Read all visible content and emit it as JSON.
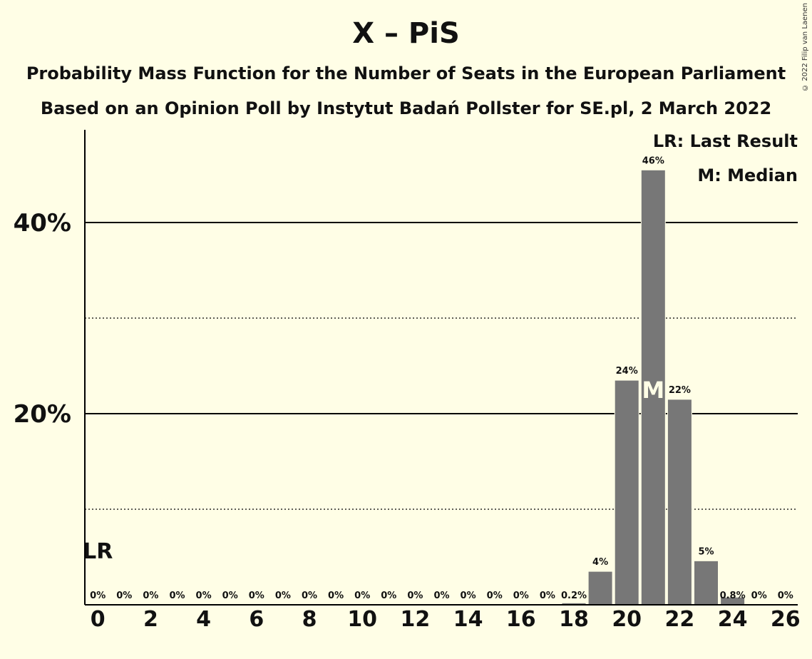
{
  "header": {
    "title": "X – PiS",
    "subtitle_line1": "Probability Mass Function for the Number of Seats in the European Parliament",
    "subtitle_line2": "Based on an Opinion Poll by Instytut Badań Pollster for SE.pl, 2 March 2022"
  },
  "copyright": "© 2022 Filip van Laenen",
  "legend": {
    "last_result": "LR: Last Result",
    "median": "M: Median"
  },
  "chart_data": {
    "type": "bar",
    "x": [
      0,
      1,
      2,
      3,
      4,
      5,
      6,
      7,
      8,
      9,
      10,
      11,
      12,
      13,
      14,
      15,
      16,
      17,
      18,
      19,
      20,
      21,
      22,
      23,
      24,
      25,
      26
    ],
    "values": [
      0,
      0,
      0,
      0,
      0,
      0,
      0,
      0,
      0,
      0,
      0,
      0,
      0,
      0,
      0,
      0,
      0,
      0,
      0.2,
      3.5,
      23.5,
      45.5,
      21.5,
      4.6,
      0.8,
      0,
      0
    ],
    "data_labels": [
      "0%",
      "0%",
      "0%",
      "0%",
      "0%",
      "0%",
      "0%",
      "0%",
      "0%",
      "0%",
      "0%",
      "0%",
      "0%",
      "0%",
      "0%",
      "0%",
      "0%",
      "0%",
      "0.2%",
      "4%",
      "24%",
      "46%",
      "22%",
      "5%",
      "0.8%",
      "0%",
      "0%"
    ],
    "x_tick_labels": [
      "0",
      "2",
      "4",
      "6",
      "8",
      "10",
      "12",
      "14",
      "16",
      "18",
      "20",
      "22",
      "24",
      "26"
    ],
    "y_tick_labels": [
      "20%",
      "40%"
    ],
    "ylim": [
      0,
      49.5
    ],
    "grid_major": [
      20,
      40
    ],
    "grid_minor": [
      10,
      30
    ],
    "last_result": {
      "x": 0,
      "label": "LR"
    },
    "median": {
      "x": 21,
      "label": "M"
    },
    "bar_color": "#777777",
    "background": "#FFFEE6"
  }
}
